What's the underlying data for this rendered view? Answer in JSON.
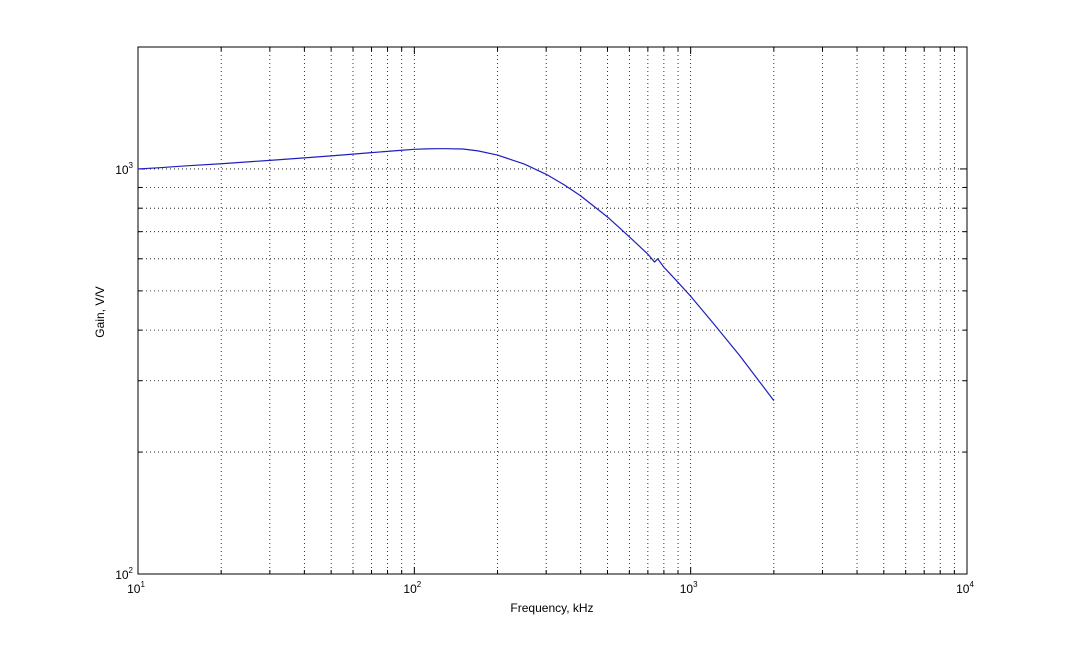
{
  "chart_data": {
    "type": "line",
    "title": "",
    "xlabel": "Frequency, kHz",
    "ylabel": "Gain, V/V",
    "xscale": "log",
    "yscale": "log",
    "xlim": [
      10,
      10000
    ],
    "ylim": [
      100,
      2000
    ],
    "grid": true,
    "legend": "none",
    "x_ticks": [
      {
        "value": 10,
        "base": "10",
        "exp": "1"
      },
      {
        "value": 100,
        "base": "10",
        "exp": "2"
      },
      {
        "value": 1000,
        "base": "10",
        "exp": "3"
      },
      {
        "value": 10000,
        "base": "10",
        "exp": "4"
      }
    ],
    "y_ticks": [
      {
        "value": 100,
        "base": "10",
        "exp": "2"
      },
      {
        "value": 1000,
        "base": "10",
        "exp": "3"
      }
    ],
    "series": [
      {
        "color": "#1f1fbf",
        "x": [
          10,
          12,
          15,
          20,
          30,
          40,
          50,
          60,
          70,
          80,
          90,
          100,
          110,
          120,
          130,
          150,
          170,
          200,
          250,
          300,
          350,
          400,
          500,
          600,
          700,
          740,
          760,
          800,
          900,
          1000,
          1200,
          1500,
          2000
        ],
        "y": [
          1000,
          1007,
          1018,
          1030,
          1050,
          1065,
          1077,
          1088,
          1097,
          1105,
          1112,
          1118,
          1121,
          1122,
          1122,
          1120,
          1108,
          1082,
          1028,
          970,
          912,
          858,
          761,
          680,
          616,
          589,
          600,
          572,
          525,
          485,
          418,
          347,
          268
        ]
      }
    ]
  }
}
